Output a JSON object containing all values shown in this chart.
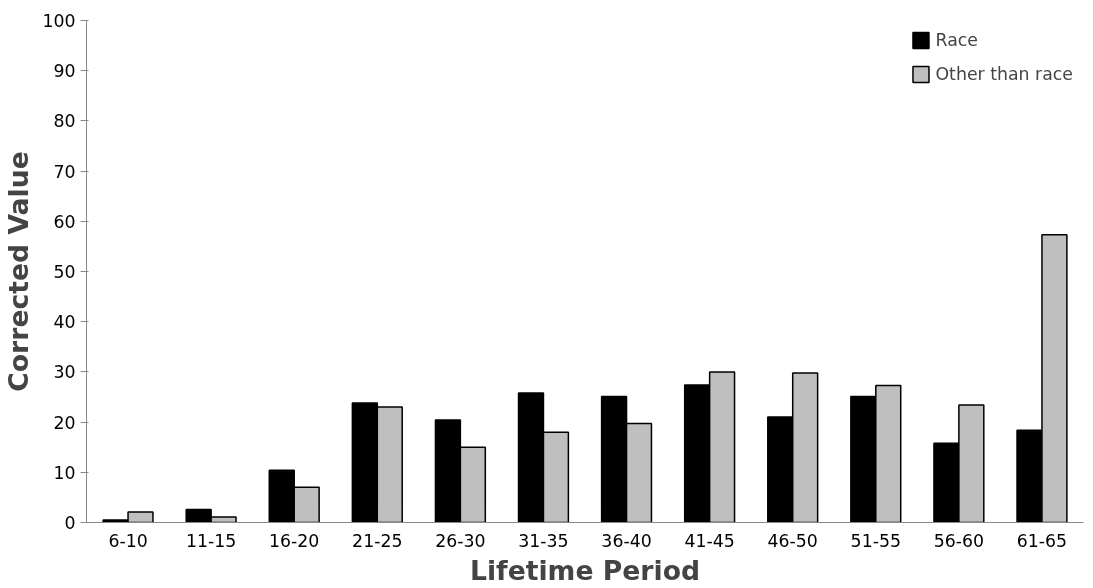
{
  "chart_data": {
    "type": "bar",
    "xlabel": "Lifetime Period",
    "ylabel": "Corrected Value",
    "categories": [
      "6-10",
      "11-15",
      "16-20",
      "21-25",
      "26-30",
      "31-35",
      "36-40",
      "41-45",
      "46-50",
      "51-55",
      "56-60",
      "61-65"
    ],
    "series": [
      {
        "name": "Race",
        "color": "#000000",
        "values": [
          0.5,
          2.6,
          10.4,
          23.8,
          20.4,
          25.8,
          25.1,
          27.4,
          21.0,
          25.1,
          15.8,
          18.4
        ]
      },
      {
        "name": "Other than race",
        "color": "#bfbfbf",
        "values": [
          2.1,
          1.1,
          7.0,
          23.0,
          15.0,
          18.0,
          19.7,
          30.0,
          29.8,
          27.3,
          23.4,
          57.3
        ]
      }
    ],
    "ylim": [
      0,
      100
    ],
    "yticks": [
      0,
      10,
      20,
      30,
      40,
      50,
      60,
      70,
      80,
      90,
      100
    ],
    "grid": false,
    "legend": "top right"
  }
}
